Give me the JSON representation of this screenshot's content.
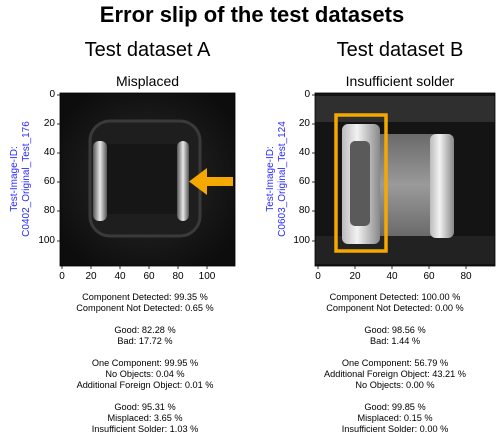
{
  "main_title": "Error slip of the test datasets",
  "panels": [
    {
      "dataset_title": "Test dataset A",
      "subtitle": "Misplaced",
      "image_id_label": "Test-Image-ID:",
      "image_id": "C0402_Original_Test_176",
      "y_ticks": [
        "0",
        "20",
        "40",
        "60",
        "80",
        "100"
      ],
      "x_ticks": [
        "0",
        "20",
        "40",
        "60",
        "80",
        "100"
      ],
      "stats": {
        "component_detected": "Component Detected: 99.35 %",
        "component_not_detected": "Component Not Detected: 0.65 %",
        "good": "Good: 82.28 %",
        "bad": "Bad: 17.72 %",
        "one_component": "One Component: 99.95 %",
        "no_objects": "No Objects: 0.04 %",
        "foreign_object": "Additional Foreign Object: 0.01 %",
        "good2": "Good: 95.31 %",
        "misplaced": "Misplaced: 3.65 %",
        "insufficient": "Insufficient Solder: 1.03 %"
      }
    },
    {
      "dataset_title": "Test dataset B",
      "subtitle": "Insufficient solder",
      "image_id_label": "Test-Image-ID:",
      "image_id": "C0603_Original_Test_124",
      "y_ticks": [
        "0",
        "20",
        "40",
        "60",
        "80",
        "100"
      ],
      "x_ticks": [
        "0",
        "20",
        "40",
        "60",
        "80"
      ],
      "stats": {
        "component_detected": "Component Detected: 100.00 %",
        "component_not_detected": "Component Not Detected: 0.00 %",
        "good": "Good: 98.56 %",
        "bad": "Bad: 1.44 %",
        "one_component": "One Component: 56.79 %",
        "foreign_object": "Additional Foreign Object: 43.21 %",
        "no_objects": "No Objects: 0.00 %",
        "good2": "Good: 99.85 %",
        "misplaced": "Misplaced: 0.15 %",
        "insufficient": "Insufficient Solder: 0.00 %"
      }
    }
  ],
  "colors": {
    "highlight": "#f5a800",
    "id_text": "#2a2aff"
  }
}
